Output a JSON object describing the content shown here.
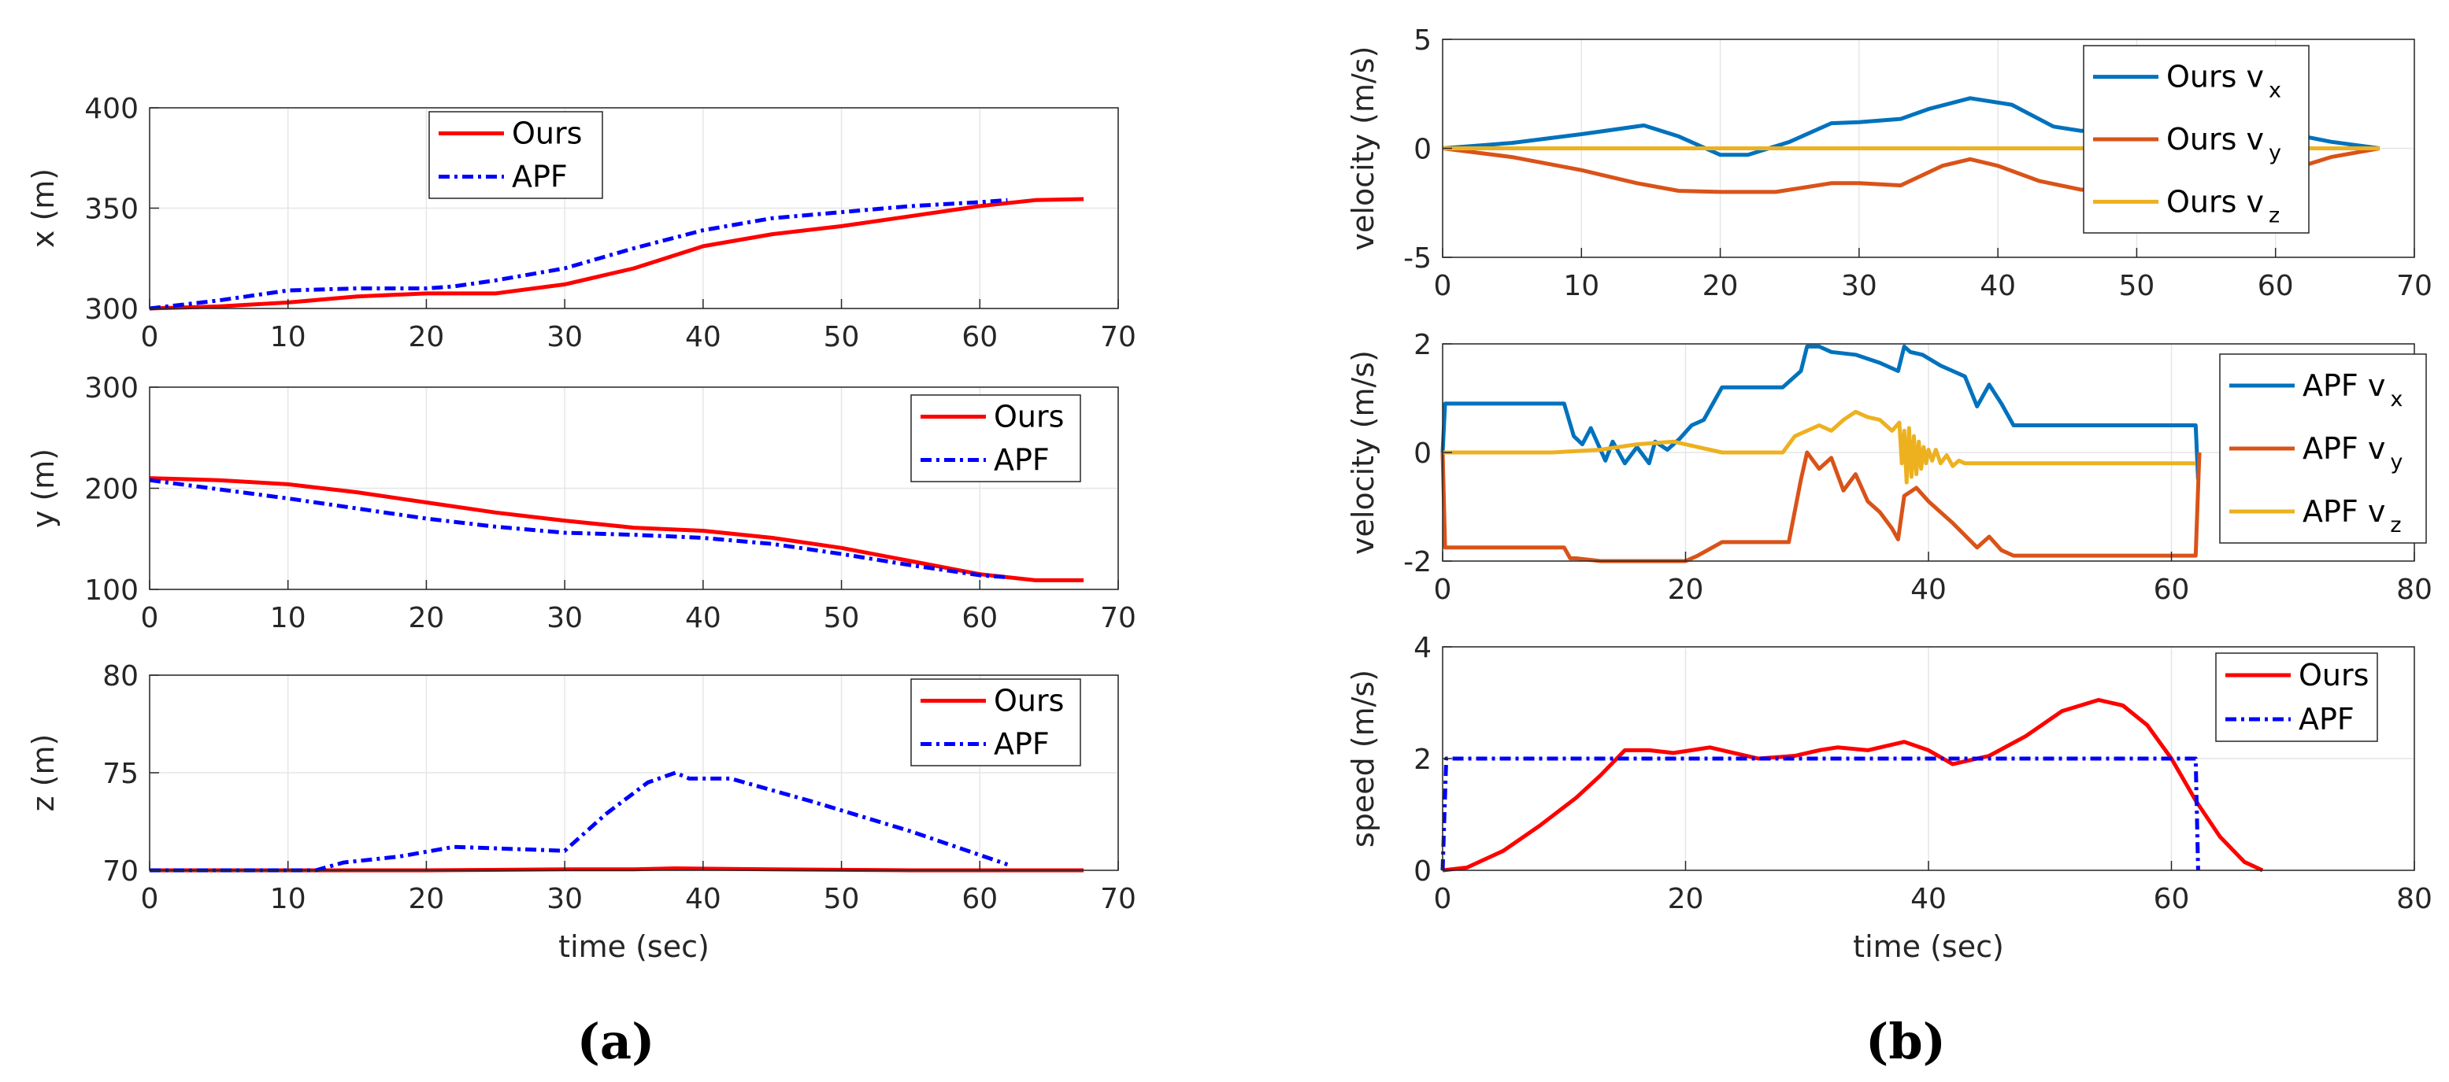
{
  "captions": {
    "a": "(a)",
    "b": "(b)"
  },
  "chart_data": [
    {
      "id": "a1",
      "type": "line",
      "xlim": [
        0,
        70
      ],
      "xticks": [
        0,
        10,
        20,
        30,
        40,
        50,
        60,
        70
      ],
      "ylim": [
        300,
        400
      ],
      "yticks": [
        300,
        350,
        400
      ],
      "ylabel": "x (m)",
      "xlabel": "",
      "grid": true,
      "legend_position": "top-center",
      "series": [
        {
          "name": "Ours",
          "color": "#ff0000",
          "style": "solid",
          "x": [
            0,
            5,
            10,
            15,
            20,
            25,
            30,
            35,
            40,
            45,
            50,
            55,
            60,
            64,
            67.5
          ],
          "y": [
            300,
            301,
            303,
            306,
            307.5,
            307.5,
            312,
            320,
            331,
            337,
            341,
            346,
            351,
            354,
            354.5
          ]
        },
        {
          "name": "APF",
          "color": "#0000ff",
          "style": "dashdot",
          "x": [
            0,
            5,
            10,
            15,
            20,
            22,
            25,
            30,
            35,
            40,
            45,
            50,
            55,
            60,
            62
          ],
          "y": [
            300,
            304,
            309,
            310,
            310,
            311,
            314,
            320,
            330,
            339,
            345,
            348,
            351,
            353,
            354
          ]
        }
      ]
    },
    {
      "id": "a2",
      "type": "line",
      "xlim": [
        0,
        70
      ],
      "xticks": [
        0,
        10,
        20,
        30,
        40,
        50,
        60,
        70
      ],
      "ylim": [
        100,
        300
      ],
      "yticks": [
        100,
        200,
        300
      ],
      "ylabel": "y (m)",
      "xlabel": "",
      "grid": true,
      "legend_position": "top-right",
      "series": [
        {
          "name": "Ours",
          "color": "#ff0000",
          "style": "solid",
          "x": [
            0,
            5,
            10,
            15,
            20,
            25,
            30,
            35,
            40,
            45,
            50,
            55,
            60,
            64,
            67.5
          ],
          "y": [
            210,
            208,
            204,
            196,
            186,
            176,
            168,
            161,
            158,
            151,
            141,
            128,
            115,
            109,
            109
          ]
        },
        {
          "name": "APF",
          "color": "#0000ff",
          "style": "dashdot",
          "x": [
            0,
            5,
            10,
            15,
            20,
            25,
            30,
            35,
            40,
            45,
            50,
            55,
            60,
            62
          ],
          "y": [
            208,
            199,
            190,
            180,
            170,
            162,
            156,
            154,
            151,
            145,
            135,
            124,
            114,
            112
          ]
        }
      ]
    },
    {
      "id": "a3",
      "type": "line",
      "xlim": [
        0,
        70
      ],
      "xticks": [
        0,
        10,
        20,
        30,
        40,
        50,
        60,
        70
      ],
      "ylim": [
        70,
        80
      ],
      "yticks": [
        70,
        75,
        80
      ],
      "ylabel": "z (m)",
      "xlabel": "time (sec)",
      "grid": true,
      "legend_position": "top-right",
      "series": [
        {
          "name": "Ours",
          "color": "#ff0000",
          "style": "solid",
          "x": [
            0,
            20,
            30,
            35,
            38,
            45,
            55,
            67.5
          ],
          "y": [
            70,
            70,
            70.05,
            70.05,
            70.1,
            70.05,
            70,
            70
          ]
        },
        {
          "name": "APF",
          "color": "#0000ff",
          "style": "dashdot",
          "x": [
            0,
            12,
            14,
            18,
            22,
            26,
            30,
            33,
            36,
            38,
            39,
            42,
            48,
            55,
            62
          ],
          "y": [
            70,
            70,
            70.4,
            70.7,
            71.2,
            71.1,
            71.0,
            72.9,
            74.5,
            75.0,
            74.7,
            74.7,
            73.5,
            72,
            70.3
          ]
        }
      ]
    },
    {
      "id": "b1",
      "type": "line",
      "xlim": [
        0,
        70
      ],
      "xticks": [
        0,
        10,
        20,
        30,
        40,
        50,
        60,
        70
      ],
      "ylim": [
        -5,
        5
      ],
      "yticks": [
        -5,
        0,
        5
      ],
      "ylabel": "velocity (m/s)",
      "xlabel": "",
      "grid": true,
      "legend_position": "top-right",
      "series": [
        {
          "name": "Ours v",
          "sub": "x",
          "color": "#0072bd",
          "style": "solid",
          "x": [
            0,
            5,
            10,
            14.5,
            17,
            20,
            22,
            25,
            28,
            30,
            33,
            35,
            38,
            41,
            44,
            46,
            50,
            55,
            60,
            64,
            67.5
          ],
          "y": [
            0,
            0.25,
            0.65,
            1.05,
            0.55,
            -0.3,
            -0.3,
            0.3,
            1.15,
            1.2,
            1.35,
            1.8,
            2.3,
            2.0,
            1.0,
            0.8,
            0.9,
            1.0,
            0.8,
            0.3,
            0
          ]
        },
        {
          "name": "Ours v",
          "sub": "y",
          "color": "#d95319",
          "style": "solid",
          "x": [
            0,
            5,
            10,
            14,
            17,
            20,
            24,
            28,
            30,
            33,
            36,
            38,
            40,
            43,
            46,
            50,
            55,
            60,
            64,
            67.5
          ],
          "y": [
            0,
            -0.4,
            -1.0,
            -1.6,
            -1.95,
            -2.0,
            -2.0,
            -1.6,
            -1.6,
            -1.7,
            -0.8,
            -0.5,
            -0.8,
            -1.5,
            -1.9,
            -1.8,
            -1.6,
            -1.2,
            -0.4,
            0
          ]
        },
        {
          "name": "Ours v",
          "sub": "z",
          "color": "#edb120",
          "style": "solid",
          "x": [
            0,
            67.5
          ],
          "y": [
            0,
            0
          ]
        }
      ]
    },
    {
      "id": "b2",
      "type": "line",
      "xlim": [
        0,
        80
      ],
      "xticks": [
        0,
        20,
        40,
        60,
        80
      ],
      "ylim": [
        -2,
        2
      ],
      "yticks": [
        -2,
        0,
        2
      ],
      "ylabel": "velocity (m/s)",
      "xlabel": "",
      "grid": true,
      "legend_position": "top-right",
      "series": [
        {
          "name": "APF v",
          "sub": "x",
          "color": "#0072bd",
          "style": "solid",
          "x": [
            0,
            0.2,
            10,
            10.8,
            11.5,
            12.2,
            12.8,
            13.4,
            14,
            15,
            16,
            17,
            17.5,
            18.5,
            19.5,
            20.5,
            21.5,
            23,
            28,
            29.5,
            30,
            31,
            32,
            34,
            36,
            37.5,
            38,
            38.5,
            39.5,
            41,
            43,
            44,
            45,
            46,
            47,
            62,
            62.2
          ],
          "y": [
            0,
            0.9,
            0.9,
            0.3,
            0.15,
            0.45,
            0.15,
            -0.15,
            0.2,
            -0.2,
            0.1,
            -0.2,
            0.2,
            0.05,
            0.25,
            0.5,
            0.6,
            1.2,
            1.2,
            1.5,
            1.95,
            1.95,
            1.85,
            1.8,
            1.65,
            1.5,
            1.95,
            1.85,
            1.8,
            1.6,
            1.4,
            0.85,
            1.25,
            0.9,
            0.5,
            0.5,
            -0.5
          ]
        },
        {
          "name": "APF v",
          "sub": "y",
          "color": "#d95319",
          "style": "solid",
          "x": [
            0,
            0.2,
            10,
            10.5,
            11,
            13,
            20,
            21,
            23,
            28.5,
            29.5,
            30,
            31,
            32,
            33,
            34,
            35,
            36,
            37,
            37.5,
            38,
            39,
            40,
            42,
            44,
            45,
            46,
            47,
            62,
            62.3
          ],
          "y": [
            0,
            -1.75,
            -1.75,
            -1.95,
            -1.95,
            -2.0,
            -2.0,
            -1.9,
            -1.65,
            -1.65,
            -0.5,
            0.0,
            -0.3,
            -0.1,
            -0.7,
            -0.4,
            -0.9,
            -1.1,
            -1.4,
            -1.6,
            -0.8,
            -0.65,
            -0.9,
            -1.3,
            -1.75,
            -1.55,
            -1.8,
            -1.9,
            -1.9,
            0
          ]
        },
        {
          "name": "APF v",
          "sub": "z",
          "color": "#edb120",
          "style": "solid",
          "x": [
            0,
            9,
            13,
            16,
            19,
            21,
            22,
            23,
            28,
            29,
            30,
            31,
            32,
            33,
            34,
            35,
            36,
            37,
            37.6,
            37.8,
            38.0,
            38.2,
            38.4,
            38.6,
            38.8,
            39.0,
            39.2,
            39.4,
            39.6,
            39.8,
            40.0,
            40.3,
            40.6,
            41,
            41.5,
            42,
            42.5,
            43,
            46,
            62
          ],
          "y": [
            0,
            0,
            0.05,
            0.15,
            0.2,
            0.1,
            0.05,
            0,
            0,
            0.3,
            0.4,
            0.5,
            0.4,
            0.6,
            0.75,
            0.65,
            0.6,
            0.4,
            0.55,
            -0.2,
            0.4,
            -0.55,
            0.45,
            -0.45,
            0.3,
            -0.4,
            0.2,
            -0.3,
            0.1,
            -0.2,
            0.05,
            -0.15,
            0.05,
            -0.2,
            -0.05,
            -0.25,
            -0.15,
            -0.2,
            -0.2,
            -0.2
          ]
        }
      ]
    },
    {
      "id": "b3",
      "type": "line",
      "xlim": [
        0,
        80
      ],
      "xticks": [
        0,
        20,
        40,
        60,
        80
      ],
      "ylim": [
        0,
        4
      ],
      "yticks": [
        0,
        2,
        4
      ],
      "ylabel": "speed (m/s)",
      "xlabel": "time (sec)",
      "grid": true,
      "legend_position": "top-right",
      "series": [
        {
          "name": "Ours",
          "color": "#ff0000",
          "style": "solid",
          "x": [
            0,
            2,
            5,
            8,
            11,
            13,
            15,
            17,
            19,
            22,
            24,
            26,
            29,
            31,
            32.5,
            35,
            38,
            40,
            42,
            45,
            48,
            51,
            54,
            56,
            58,
            60,
            62,
            64,
            66,
            67.5
          ],
          "y": [
            0,
            0.05,
            0.35,
            0.8,
            1.3,
            1.7,
            2.15,
            2.15,
            2.1,
            2.2,
            2.1,
            2.0,
            2.05,
            2.15,
            2.2,
            2.15,
            2.3,
            2.15,
            1.9,
            2.05,
            2.4,
            2.85,
            3.05,
            2.95,
            2.6,
            2.0,
            1.25,
            0.6,
            0.15,
            0
          ]
        },
        {
          "name": "APF",
          "color": "#0000ff",
          "style": "dashdot",
          "x": [
            0,
            0.3,
            62,
            62.2
          ],
          "y": [
            0,
            2,
            2,
            0
          ]
        }
      ]
    }
  ]
}
